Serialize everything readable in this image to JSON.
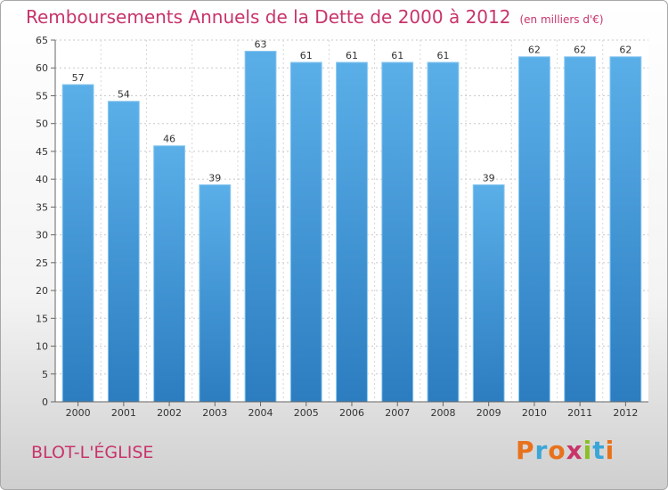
{
  "header": {
    "title": "Remboursements Annuels de la Dette de 2000 à 2012",
    "subtitle": "(en milliers d'€)"
  },
  "footer": {
    "city": "BLOT-L'ÉGLISE",
    "brand": "Proxiti",
    "brand_colors": [
      "#e8721c",
      "#3aa6d8",
      "#e8721c",
      "#c8346a",
      "#8cbf26",
      "#3aa6d8",
      "#e8721c"
    ]
  },
  "chart_data": {
    "type": "bar",
    "categories": [
      "2000",
      "2001",
      "2002",
      "2003",
      "2004",
      "2005",
      "2006",
      "2007",
      "2008",
      "2009",
      "2010",
      "2011",
      "2012"
    ],
    "values": [
      57,
      54,
      46,
      39,
      63,
      61,
      61,
      61,
      61,
      39,
      62,
      62,
      62
    ],
    "title": "Remboursements Annuels de la Dette de 2000 à 2012",
    "subtitle": "(en milliers d'€)",
    "xlabel": "",
    "ylabel": "",
    "ylim": [
      0,
      65
    ],
    "yticks": [
      0,
      5,
      10,
      15,
      20,
      25,
      30,
      35,
      40,
      45,
      50,
      55,
      60,
      65
    ],
    "grid": true,
    "bar_color_top": "#5aafe8",
    "bar_color_bottom": "#2c7dc0",
    "data_labels": true
  }
}
